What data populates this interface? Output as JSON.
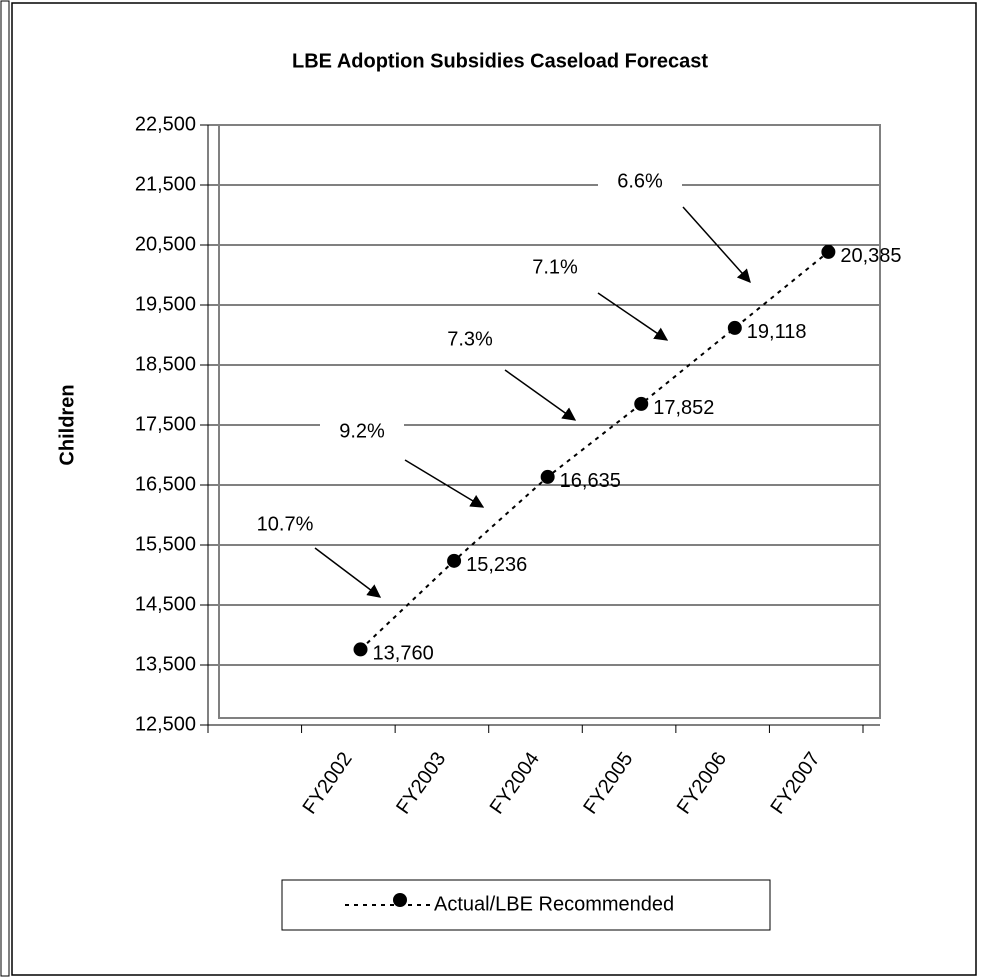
{
  "chart_data": {
    "type": "line",
    "title": "LBE Adoption Subsidies Caseload Forecast",
    "y_label": "Children",
    "categories": [
      "FY2002",
      "FY2003",
      "FY2004",
      "FY2005",
      "FY2006",
      "FY2007"
    ],
    "series": [
      {
        "name": "Actual/LBE Recommended",
        "color": "#000000",
        "values": [
          13760,
          15236,
          16635,
          17852,
          19118,
          20385
        ],
        "value_labels": [
          "13,760",
          "15,236",
          "16,635",
          "17,852",
          "19,118",
          "20,385"
        ]
      }
    ],
    "annotations": [
      "10.7%",
      "9.2%",
      "7.3%",
      "7.1%",
      "6.6%"
    ],
    "ylim": [
      12500,
      22500
    ],
    "yticks": [
      {
        "value": 12500,
        "label": "12,500"
      },
      {
        "value": 13500,
        "label": "13,500"
      },
      {
        "value": 14500,
        "label": "14,500"
      },
      {
        "value": 15500,
        "label": "15,500"
      },
      {
        "value": 16500,
        "label": "16,500"
      },
      {
        "value": 17500,
        "label": "17,500"
      },
      {
        "value": 18500,
        "label": "18,500"
      },
      {
        "value": 19500,
        "label": "19,500"
      },
      {
        "value": 20500,
        "label": "20,500"
      },
      {
        "value": 21500,
        "label": "21,500"
      },
      {
        "value": 22500,
        "label": "22,500"
      }
    ],
    "grid": true
  }
}
